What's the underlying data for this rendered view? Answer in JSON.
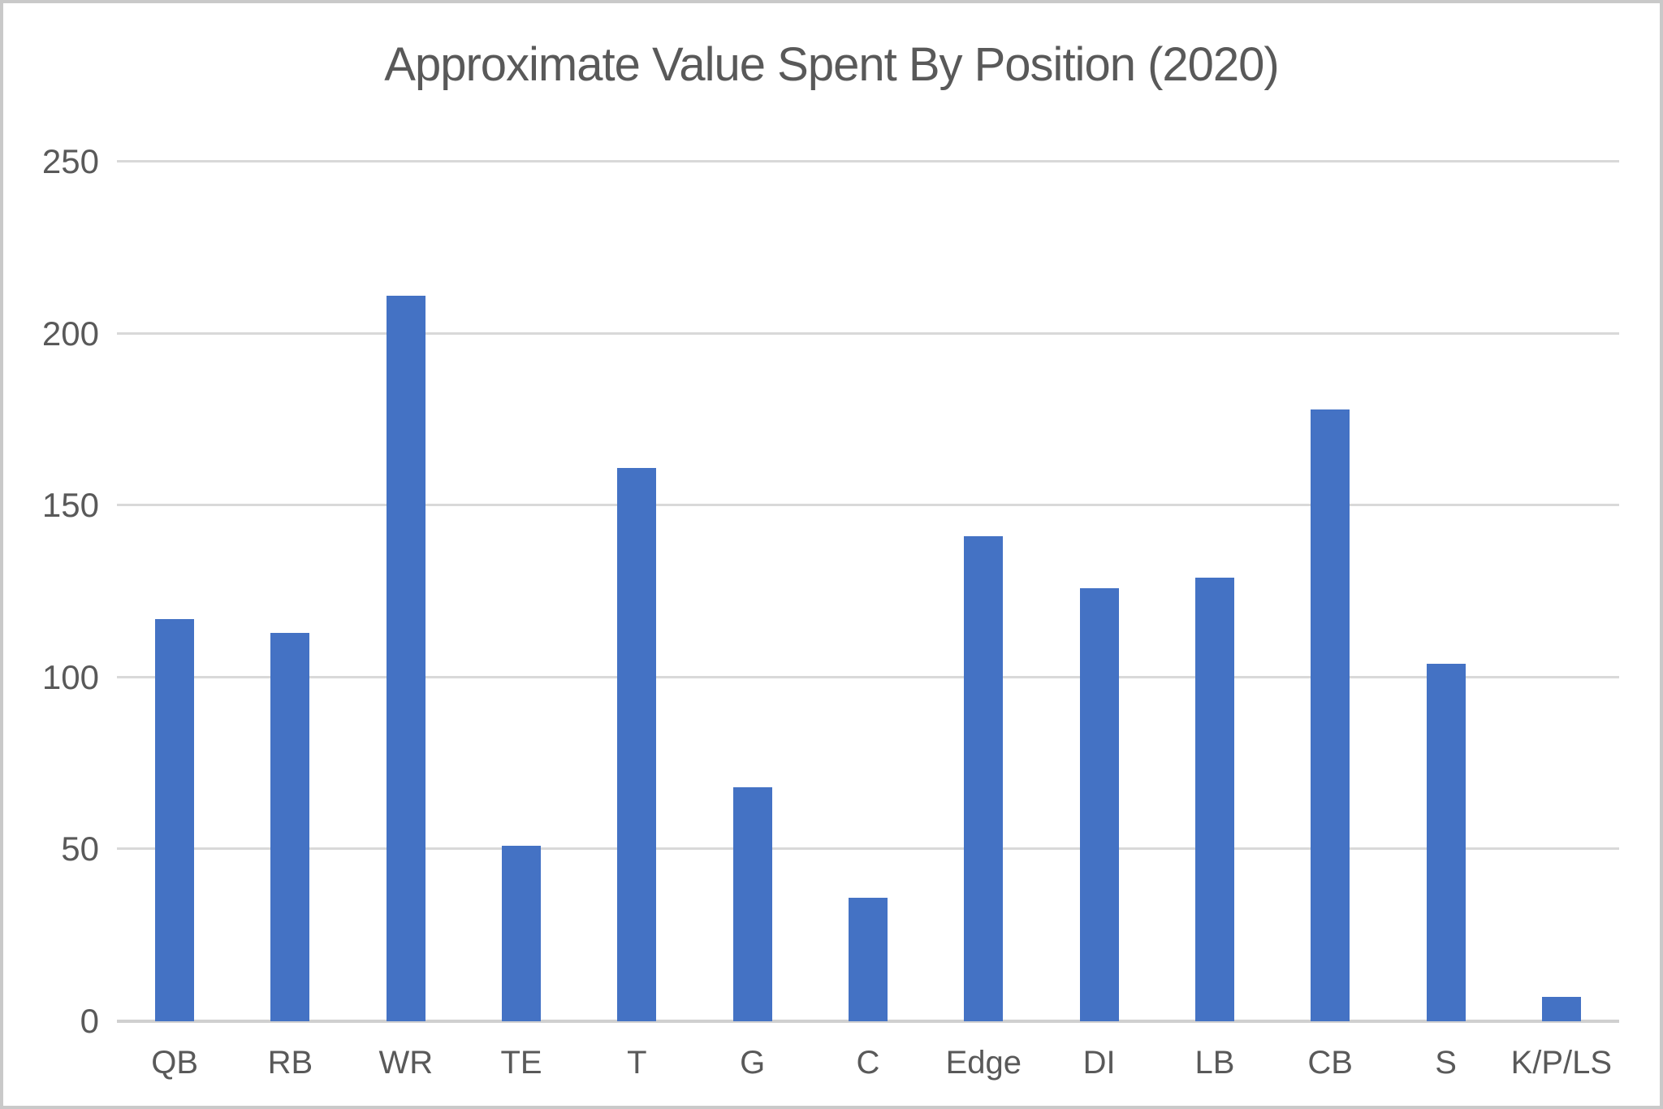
{
  "chart_data": {
    "type": "bar",
    "title": "Approximate Value Spent By Position (2020)",
    "categories": [
      "QB",
      "RB",
      "WR",
      "TE",
      "T",
      "G",
      "C",
      "Edge",
      "DI",
      "LB",
      "CB",
      "S",
      "K/P/LS"
    ],
    "values": [
      117,
      113,
      211,
      51,
      161,
      68,
      36,
      141,
      126,
      129,
      178,
      104,
      7
    ],
    "xlabel": "",
    "ylabel": "",
    "ylim": [
      0,
      250
    ],
    "yticks": [
      0,
      50,
      100,
      150,
      200,
      250
    ],
    "grid": "horizontal-only",
    "legend": "none",
    "bar_color": "#4472C4",
    "gridline_color": "#D9D9D9",
    "axis_line_color": "#D0D0D0",
    "text_color": "#595959",
    "background_color": "#FFFFFF",
    "border_color": "#C9C9C9"
  }
}
